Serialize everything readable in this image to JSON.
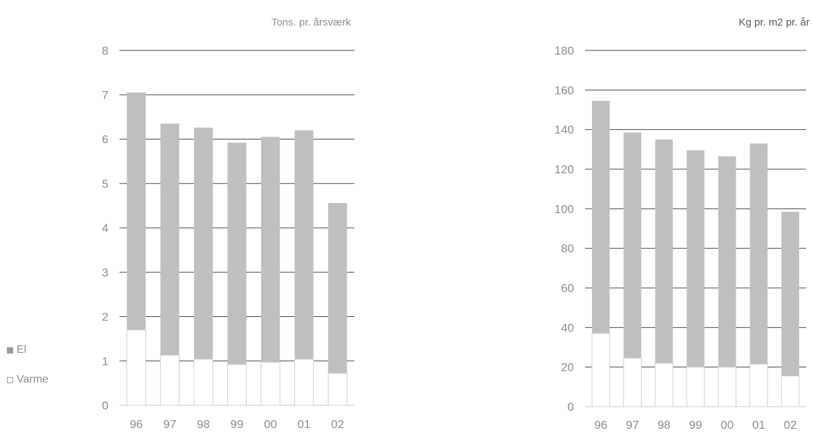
{
  "legend": {
    "el_label": "El",
    "varme_label": "Varme"
  },
  "colors": {
    "el": "#bfbfbf",
    "varme": "#ffffff",
    "gridline": "#404040",
    "text": "#8c8c8c"
  },
  "chart_data": [
    {
      "type": "bar",
      "stacked": true,
      "unit_label": "Tons. pr. årsværk",
      "categories": [
        "96",
        "97",
        "98",
        "99",
        "00",
        "01",
        "02"
      ],
      "ylim": [
        0,
        8
      ],
      "yticks": [
        0,
        1,
        2,
        3,
        4,
        5,
        6,
        7,
        8
      ],
      "series": [
        {
          "name": "Varme",
          "values": [
            1.7,
            1.13,
            1.04,
            0.92,
            0.97,
            1.04,
            0.72
          ]
        },
        {
          "name": "El",
          "values": [
            5.35,
            5.22,
            5.22,
            5.0,
            5.08,
            5.16,
            3.84
          ]
        }
      ]
    },
    {
      "type": "bar",
      "stacked": true,
      "unit_label": "Kg pr. m2 pr. år",
      "categories": [
        "96",
        "97",
        "98",
        "99",
        "00",
        "01",
        "02"
      ],
      "ylim": [
        0,
        180
      ],
      "yticks": [
        0,
        20,
        40,
        60,
        80,
        100,
        120,
        140,
        160,
        180
      ],
      "series": [
        {
          "name": "Varme",
          "values": [
            37,
            24.5,
            22,
            20,
            20,
            21.5,
            15.5
          ]
        },
        {
          "name": "El",
          "values": [
            117.5,
            114,
            113,
            109.5,
            106.5,
            111.5,
            83
          ]
        }
      ]
    }
  ]
}
